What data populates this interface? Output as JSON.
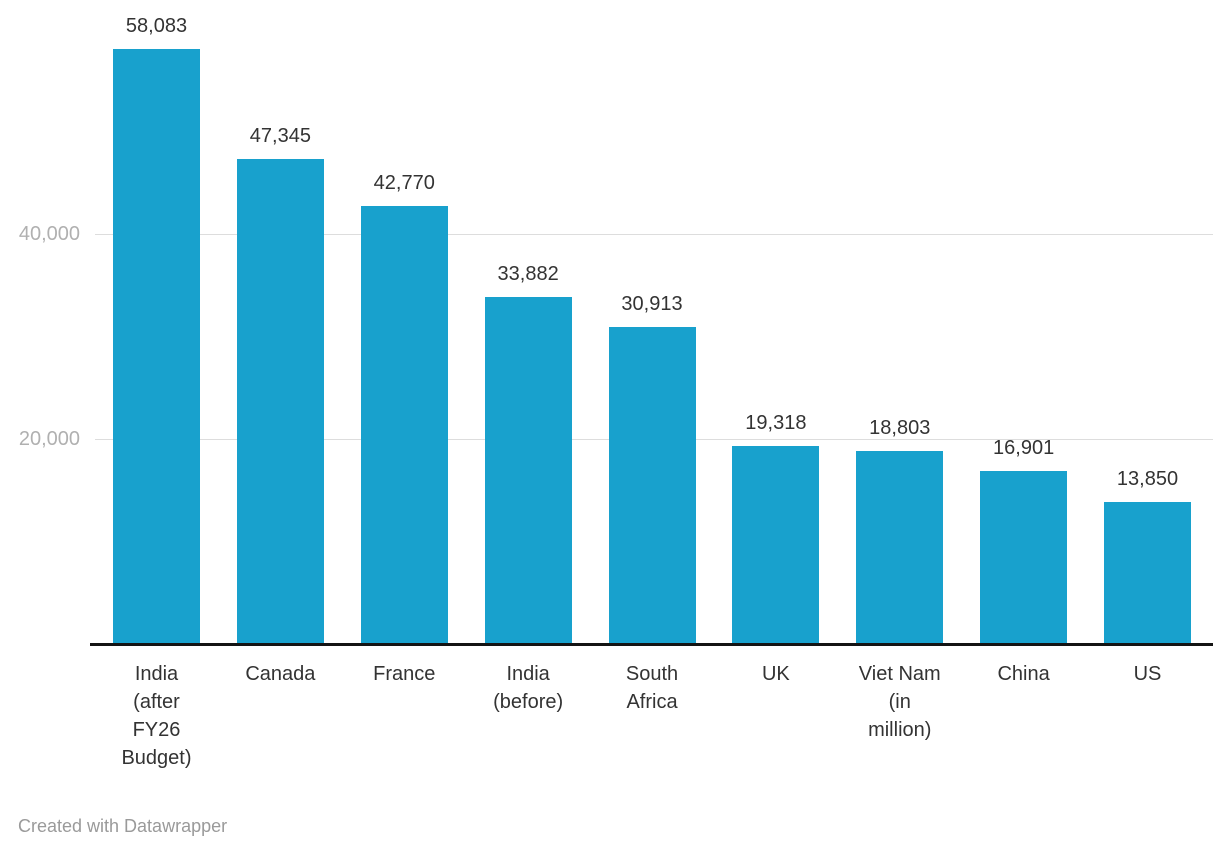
{
  "chart_data": {
    "type": "bar",
    "title": "",
    "xlabel": "",
    "ylabel": "",
    "categories": [
      "India (after FY26 Budget)",
      "Canada",
      "France",
      "India (before)",
      "South Africa",
      "UK",
      "Viet Nam (in million)",
      "China",
      "US"
    ],
    "category_lines": [
      [
        "India",
        "(after",
        "FY26",
        "Budget)"
      ],
      [
        "Canada"
      ],
      [
        "France"
      ],
      [
        "India",
        "(before)"
      ],
      [
        "South",
        "Africa"
      ],
      [
        "UK"
      ],
      [
        "Viet Nam",
        "(in",
        "million)"
      ],
      [
        "China"
      ],
      [
        "US"
      ]
    ],
    "values": [
      58083,
      47345,
      42770,
      33882,
      30913,
      19318,
      18803,
      16901,
      13850
    ],
    "value_labels": [
      "58,083",
      "47,345",
      "42,770",
      "33,882",
      "30,913",
      "19,318",
      "18,803",
      "16,901",
      "13,850"
    ],
    "y_ticks": [
      {
        "value": 20000,
        "label": "20,000"
      },
      {
        "value": 40000,
        "label": "40,000"
      }
    ],
    "ylim": [
      0,
      63000
    ],
    "grid": true,
    "legend_position": "none",
    "bar_color": "#18a1cd"
  },
  "colors": {
    "accent": "#18a1cd",
    "axis": "#141414",
    "grid": "#dddddd",
    "tick_text": "#b0b0b0",
    "label_text": "#333333",
    "footer_text": "#9a9a9a"
  },
  "footer": {
    "credit": "Created with Datawrapper"
  }
}
